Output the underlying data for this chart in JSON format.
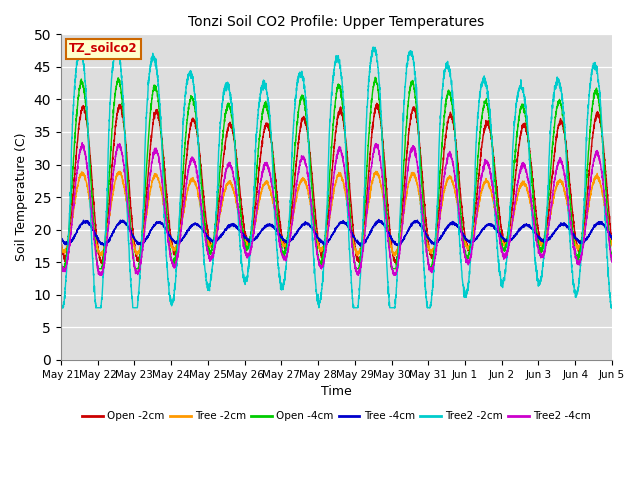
{
  "title": "Tonzi Soil CO2 Profile: Upper Temperatures",
  "xlabel": "Time",
  "ylabel": "Soil Temperature (C)",
  "ylim": [
    0,
    50
  ],
  "yticks": [
    0,
    5,
    10,
    15,
    20,
    25,
    30,
    35,
    40,
    45,
    50
  ],
  "series_names": [
    "Open -2cm",
    "Tree -2cm",
    "Open -4cm",
    "Tree -4cm",
    "Tree2 -2cm",
    "Tree2 -4cm"
  ],
  "series_colors": [
    "#cc0000",
    "#ff9900",
    "#00cc00",
    "#0000cc",
    "#00cccc",
    "#cc00cc"
  ],
  "label_box_text": "TZ_soilco2",
  "label_box_facecolor": "#ffffcc",
  "label_box_edgecolor": "#cc6600",
  "label_box_textcolor": "#cc0000",
  "background_color": "#dddddd",
  "tick_labels": [
    "May 21",
    "May 22",
    "May 23",
    "May 24",
    "May 25",
    "May 26",
    "May 27",
    "May 28",
    "May 29",
    "May 30",
    "May 31",
    "Jun 1",
    "Jun 2",
    "Jun 3",
    "Jun 4",
    "Jun 5"
  ],
  "days": 15
}
